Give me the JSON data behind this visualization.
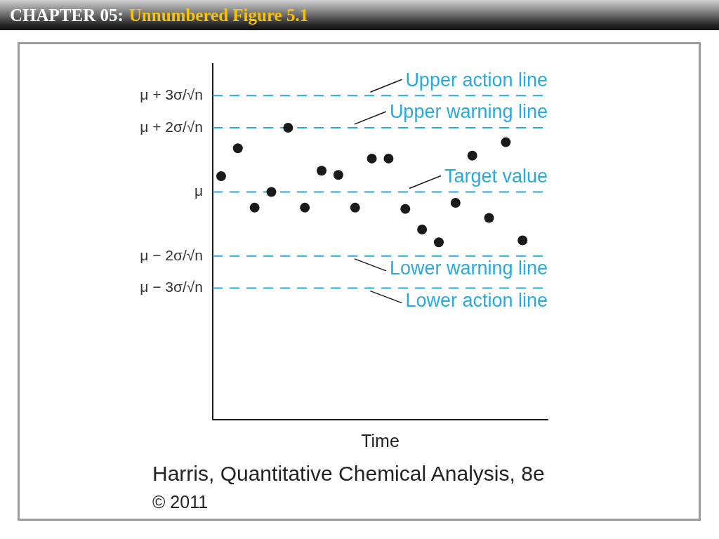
{
  "chart_data": {
    "type": "scatter",
    "title": "CHAPTER 05:",
    "subtitle": "Unnumbered Figure 5.1",
    "xlabel": "Time",
    "categories": [
      null,
      null,
      null,
      null,
      null,
      null,
      null,
      null,
      null,
      null,
      null,
      null,
      null,
      null,
      null,
      null,
      null,
      null,
      null,
      null
    ],
    "series": [
      {
        "color": "#1a1a1a",
        "values": [
          0.49,
          1.36,
          -0.49,
          0,
          2.0,
          -0.49,
          0.66,
          0.53,
          -0.49,
          1.04,
          1.04,
          -0.53,
          -1.17,
          -1.57,
          -0.34,
          1.13,
          -0.81,
          1.55,
          -1.51,
          null
        ]
      }
    ],
    "ylim": [
      -7.1,
      4
    ],
    "yticks": [
      {
        "value": -3,
        "label": "μ − 3σ/√n"
      },
      {
        "value": -2,
        "label": "μ − 2σ/√n"
      },
      {
        "value": 0,
        "label": "μ"
      },
      {
        "value": 2,
        "label": "μ + 2σ/√n"
      },
      {
        "value": 3,
        "label": "μ + 3σ/√n"
      }
    ],
    "tick_labels": "y",
    "marker": "circle",
    "ref_lines": [
      {
        "axis": "y",
        "value": 3,
        "label": "Upper action line",
        "color": "#27aae1",
        "line_style": "dashed"
      },
      {
        "axis": "y",
        "value": 2,
        "label": "Upper warning line",
        "color": "#27aae1",
        "line_style": "dashed"
      },
      {
        "axis": "y",
        "value": 0,
        "label": "Target value",
        "color": "#27aae1",
        "line_style": "dashed"
      },
      {
        "axis": "y",
        "value": -2,
        "label": "Lower warning line",
        "color": "#27aae1",
        "line_style": "dashed"
      },
      {
        "axis": "y",
        "value": -3,
        "label": "Lower action line",
        "color": "#27aae1",
        "line_style": "dashed"
      }
    ],
    "annotations": [
      "Harris, Quantitative Chemical Analysis, 8e",
      "© 2011"
    ]
  }
}
